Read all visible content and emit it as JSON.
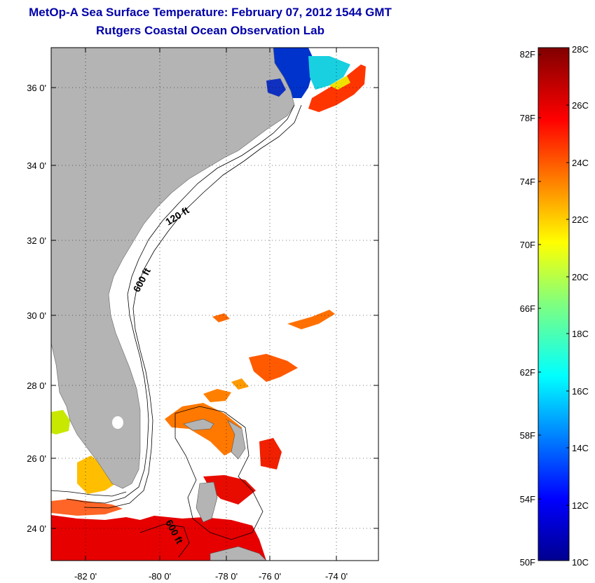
{
  "title_line1": "MetOp-A Sea Surface Temperature:  February 07, 2012 1544 GMT",
  "title_line2": "Rutgers Coastal Ocean Observation Lab",
  "map": {
    "lat_labels": [
      "36 0'",
      "34 0'",
      "32 0'",
      "30 0'",
      "28 0'",
      "26 0'",
      "24 0'"
    ],
    "lon_labels": [
      "-82 0'",
      "-80 0'",
      "-78 0'",
      "-76 0'",
      "-74 0'"
    ],
    "contour_labels": [
      "120 ft",
      "600 ft",
      "600 ft"
    ]
  },
  "colorbar": {
    "f_labels": [
      "82F",
      "78F",
      "74F",
      "70F",
      "66F",
      "62F",
      "58F",
      "54F",
      "50F"
    ],
    "c_labels": [
      "28C",
      "26C",
      "24C",
      "22C",
      "20C",
      "18C",
      "16C",
      "14C",
      "12C",
      "10C"
    ]
  },
  "colors": {
    "land": "#b4b4b4",
    "title": "#0000a8"
  }
}
